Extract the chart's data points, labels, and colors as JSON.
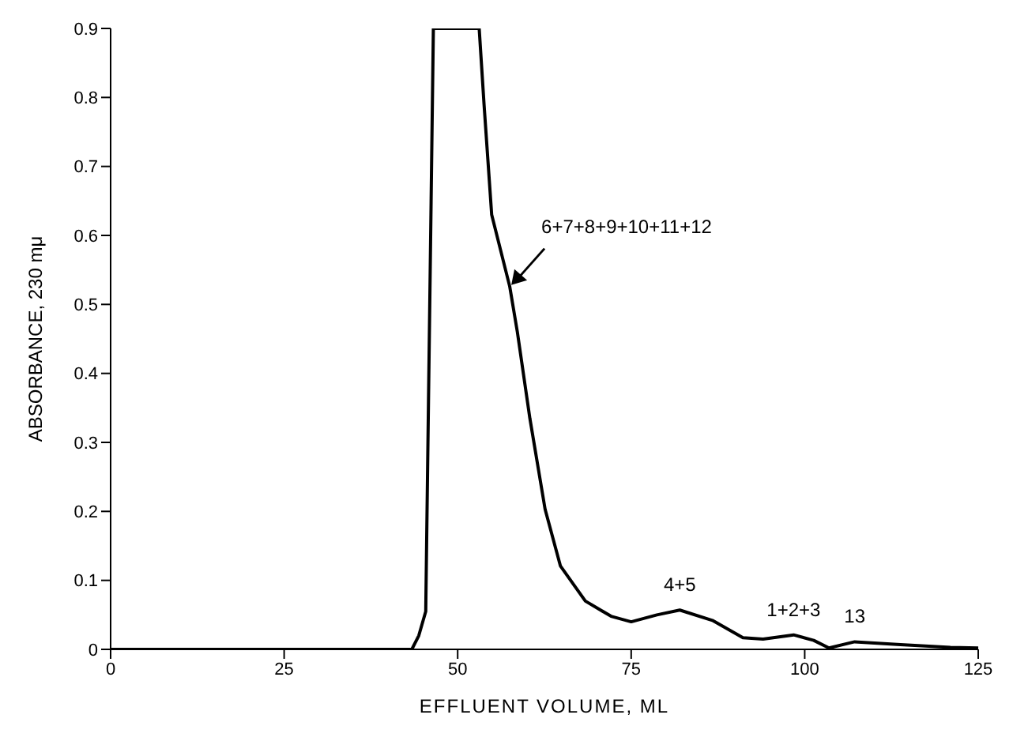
{
  "chart_data": {
    "type": "line",
    "xlabel": "EFFLUENT VOLUME, ML",
    "ylabel": "ABSORBANCE, 230 mμ",
    "x": [
      0,
      43.4,
      44.4,
      45.4,
      46.5,
      50,
      53.1,
      53.8,
      54.9,
      57.5,
      58.6,
      60.4,
      62.6,
      64.8,
      68.4,
      72.1,
      75,
      78.7,
      82,
      86.7,
      91.1,
      94,
      98.4,
      101.3,
      103.5,
      107.2,
      113.8,
      121,
      125
    ],
    "series": [
      {
        "color": "#000000",
        "values": [
          0,
          0,
          0.02,
          0.055,
          0.9,
          0.9,
          0.9,
          0.79,
          0.63,
          0.526,
          0.46,
          0.335,
          0.203,
          0.121,
          0.07,
          0.048,
          0.04,
          0.05,
          0.057,
          0.042,
          0.017,
          0.015,
          0.021,
          0.013,
          0.002,
          0.011,
          0.007,
          0.003,
          0.002
        ]
      }
    ],
    "xlim": [
      0,
      125
    ],
    "xticks": [
      0,
      25,
      50,
      75,
      100,
      125
    ],
    "ylim": [
      0,
      0.9
    ],
    "yticks": [
      0,
      0.1,
      0.2,
      0.3,
      0.4,
      0.5,
      0.6,
      0.7,
      0.8,
      0.9
    ],
    "grid": false,
    "legend": false,
    "marker": "none",
    "line_style": "solid",
    "annotations": [
      {
        "text": "6+7+8+9+10+11+12",
        "x": 57.5,
        "y": 0.526
      },
      {
        "text": "4+5",
        "x": 82,
        "y": 0.057
      },
      {
        "text": "1+2+3",
        "x": 98.4,
        "y": 0.021
      },
      {
        "text": "13",
        "x": 107.2,
        "y": 0.011
      }
    ]
  }
}
